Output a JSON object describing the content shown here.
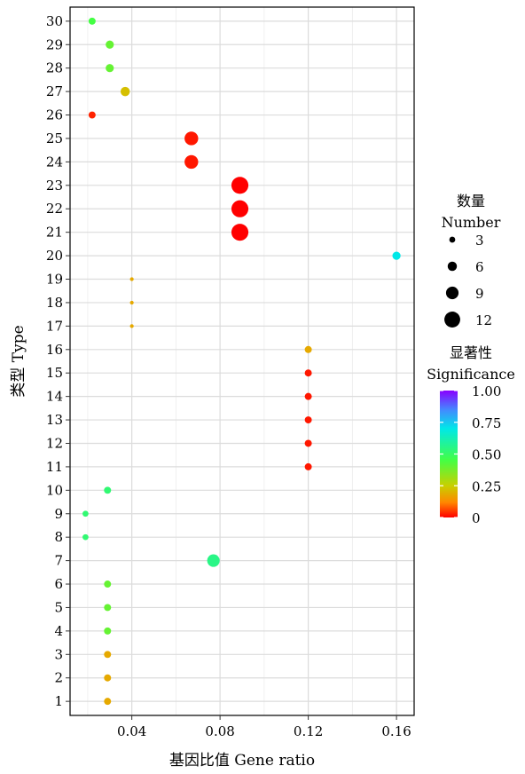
{
  "chart_data": {
    "type": "scatter",
    "xlabel": "基因比值 Gene ratio",
    "ylabel": "类型 Type",
    "xlim": [
      0.012,
      0.168
    ],
    "ylim": [
      0.4,
      30.6
    ],
    "x_ticks": [
      0.04,
      0.08,
      0.12,
      0.16
    ],
    "x_tick_labels": [
      "0.04",
      "0.08",
      "0.12",
      "0.16"
    ],
    "y_ticks": [
      1,
      2,
      3,
      4,
      5,
      6,
      7,
      8,
      9,
      10,
      11,
      12,
      13,
      14,
      15,
      16,
      17,
      18,
      19,
      20,
      21,
      22,
      23,
      24,
      25,
      26,
      27,
      28,
      29,
      30
    ],
    "y_tick_labels": [
      "1",
      "2",
      "3",
      "4",
      "5",
      "6",
      "7",
      "8",
      "9",
      "10",
      "11",
      "12",
      "13",
      "14",
      "15",
      "16",
      "17",
      "18",
      "19",
      "20",
      "21",
      "22",
      "23",
      "24",
      "25",
      "26",
      "27",
      "28",
      "29",
      "30"
    ],
    "grid": true,
    "legend_position": "right",
    "points": [
      {
        "y": 1,
        "x": 0.029,
        "number": 4,
        "significance": 0.18
      },
      {
        "y": 2,
        "x": 0.029,
        "number": 4,
        "significance": 0.18
      },
      {
        "y": 3,
        "x": 0.029,
        "number": 4,
        "significance": 0.18
      },
      {
        "y": 4,
        "x": 0.029,
        "number": 4,
        "significance": 0.4
      },
      {
        "y": 5,
        "x": 0.029,
        "number": 4,
        "significance": 0.4
      },
      {
        "y": 6,
        "x": 0.029,
        "number": 4,
        "significance": 0.4
      },
      {
        "y": 7,
        "x": 0.077,
        "number": 9,
        "significance": 0.55
      },
      {
        "y": 8,
        "x": 0.019,
        "number": 3,
        "significance": 0.52
      },
      {
        "y": 9,
        "x": 0.019,
        "number": 3,
        "significance": 0.52
      },
      {
        "y": 10,
        "x": 0.029,
        "number": 4,
        "significance": 0.52
      },
      {
        "y": 11,
        "x": 0.12,
        "number": 4,
        "significance": 0.02
      },
      {
        "y": 12,
        "x": 0.12,
        "number": 4,
        "significance": 0.02
      },
      {
        "y": 13,
        "x": 0.12,
        "number": 4,
        "significance": 0.02
      },
      {
        "y": 14,
        "x": 0.12,
        "number": 4,
        "significance": 0.02
      },
      {
        "y": 15,
        "x": 0.12,
        "number": 4,
        "significance": 0.02
      },
      {
        "y": 16,
        "x": 0.12,
        "number": 4,
        "significance": 0.18
      },
      {
        "y": 17,
        "x": 0.04,
        "number": 1,
        "significance": 0.18
      },
      {
        "y": 18,
        "x": 0.04,
        "number": 1,
        "significance": 0.18
      },
      {
        "y": 19,
        "x": 0.04,
        "number": 1,
        "significance": 0.18
      },
      {
        "y": 20,
        "x": 0.16,
        "number": 5,
        "significance": 0.7
      },
      {
        "y": 21,
        "x": 0.089,
        "number": 13,
        "significance": 0.0
      },
      {
        "y": 22,
        "x": 0.089,
        "number": 13,
        "significance": 0.0
      },
      {
        "y": 23,
        "x": 0.089,
        "number": 13,
        "significance": 0.0
      },
      {
        "y": 24,
        "x": 0.067,
        "number": 10,
        "significance": 0.02
      },
      {
        "y": 25,
        "x": 0.067,
        "number": 10,
        "significance": 0.02
      },
      {
        "y": 26,
        "x": 0.022,
        "number": 4,
        "significance": 0.03
      },
      {
        "y": 27,
        "x": 0.037,
        "number": 6,
        "significance": 0.22
      },
      {
        "y": 28,
        "x": 0.03,
        "number": 5,
        "significance": 0.4
      },
      {
        "y": 29,
        "x": 0.03,
        "number": 5,
        "significance": 0.4
      },
      {
        "y": 30,
        "x": 0.022,
        "number": 4,
        "significance": 0.45
      }
    ],
    "size_legend": {
      "title_cn": "数量",
      "title_en": "Number",
      "values": [
        3,
        6,
        9,
        12
      ],
      "labels": [
        "3",
        "6",
        "9",
        "12"
      ]
    },
    "color_legend": {
      "title_cn": "显著性",
      "title_en": "Significance",
      "range": [
        0,
        1
      ],
      "ticks": [
        0,
        0.25,
        0.5,
        0.75,
        1.0
      ],
      "tick_labels": [
        "0",
        "0.25",
        "0.50",
        "0.75",
        "1.00"
      ],
      "gradient_colors": [
        "#ff0000",
        "#ff8800",
        "#c8d000",
        "#44ff44",
        "#00e8e8",
        "#4488ff",
        "#8800ff"
      ]
    }
  }
}
